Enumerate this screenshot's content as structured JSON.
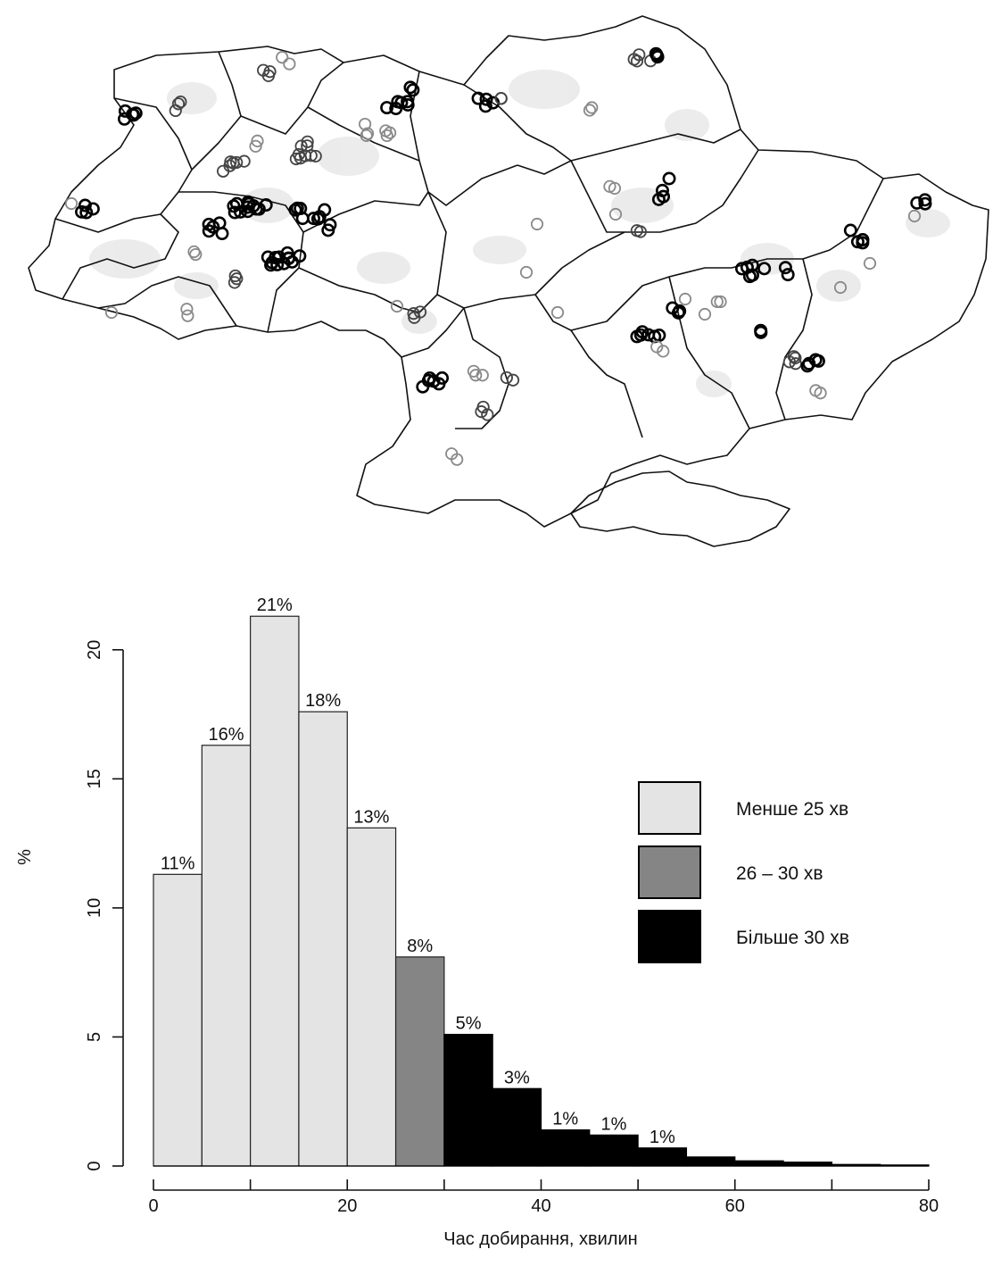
{
  "chart_data": {
    "type": "bar",
    "xlabel": "Час добирання, хвилин",
    "ylabel": "%",
    "xlim": [
      0,
      80
    ],
    "ylim": [
      0,
      22
    ],
    "x_ticks": [
      0,
      20,
      40,
      60,
      80
    ],
    "y_ticks": [
      0,
      5,
      10,
      15,
      20
    ],
    "bins": [
      {
        "from": 0,
        "to": 5,
        "value": 11.3,
        "label": "11%",
        "group": "under25"
      },
      {
        "from": 5,
        "to": 10,
        "value": 16.3,
        "label": "16%",
        "group": "under25"
      },
      {
        "from": 10,
        "to": 15,
        "value": 21.3,
        "label": "21%",
        "group": "under25"
      },
      {
        "from": 15,
        "to": 20,
        "value": 17.6,
        "label": "18%",
        "group": "under25"
      },
      {
        "from": 20,
        "to": 25,
        "value": 13.1,
        "label": "13%",
        "group": "under25"
      },
      {
        "from": 25,
        "to": 30,
        "value": 8.1,
        "label": "8%",
        "group": "26to30"
      },
      {
        "from": 30,
        "to": 35,
        "value": 5.1,
        "label": "5%",
        "group": "over30"
      },
      {
        "from": 35,
        "to": 40,
        "value": 3.0,
        "label": "3%",
        "group": "over30"
      },
      {
        "from": 40,
        "to": 45,
        "value": 1.4,
        "label": "1%",
        "group": "over30"
      },
      {
        "from": 45,
        "to": 50,
        "value": 1.2,
        "label": "1%",
        "group": "over30"
      },
      {
        "from": 50,
        "to": 55,
        "value": 0.7,
        "label": "1%",
        "group": "over30"
      },
      {
        "from": 55,
        "to": 60,
        "value": 0.35,
        "label": "",
        "group": "over30"
      },
      {
        "from": 60,
        "to": 65,
        "value": 0.2,
        "label": "",
        "group": "over30"
      },
      {
        "from": 65,
        "to": 70,
        "value": 0.15,
        "label": "",
        "group": "over30"
      },
      {
        "from": 70,
        "to": 75,
        "value": 0.06,
        "label": "",
        "group": "over30"
      },
      {
        "from": 75,
        "to": 80,
        "value": 0.04,
        "label": "",
        "group": "over30"
      }
    ],
    "legend": {
      "placement": "right",
      "entries": [
        {
          "key": "under25",
          "label": "Менше 25 хв",
          "color": "#e4e4e4"
        },
        {
          "key": "26to30",
          "label": "26 – 30 хв",
          "color": "#858585"
        },
        {
          "key": "over30",
          "label": "Більше 30 хв",
          "color": "#000000"
        }
      ]
    }
  },
  "map": {
    "region": "Ukraine oblast boundaries",
    "marker_style": "circles",
    "marker_colors": [
      "#000000",
      "#444444",
      "#8a8a8a"
    ],
    "shading_color": "#d9d9d9"
  }
}
